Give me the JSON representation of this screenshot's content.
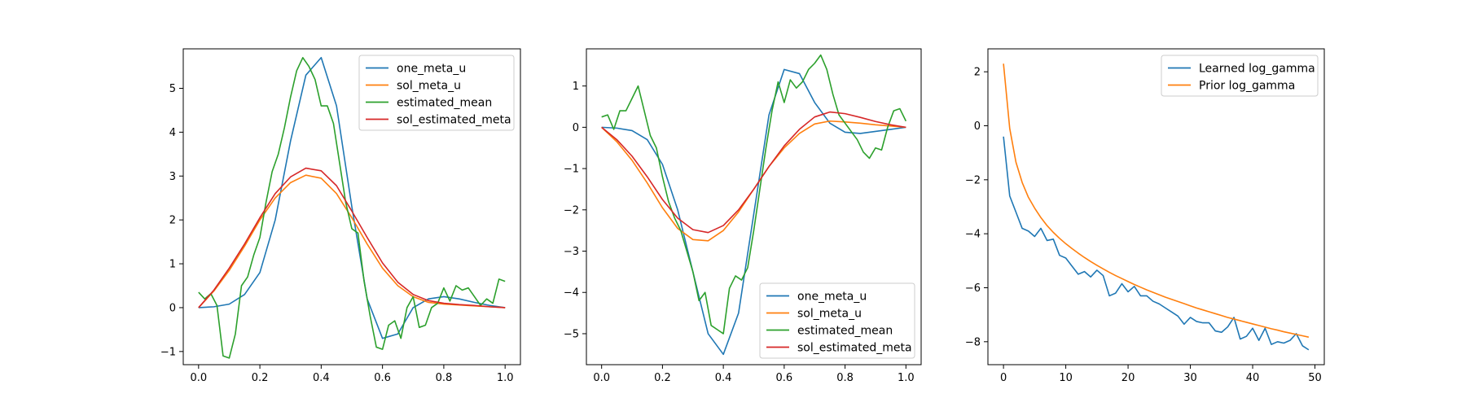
{
  "chart_data": [
    {
      "type": "line",
      "xlim": [
        -0.05,
        1.05
      ],
      "ylim": [
        -1.3,
        5.9
      ],
      "xticks": [
        0.0,
        0.2,
        0.4,
        0.6,
        0.8,
        1.0
      ],
      "xtick_labels": [
        "0.0",
        "0.2",
        "0.4",
        "0.6",
        "0.8",
        "1.0"
      ],
      "yticks": [
        -1,
        0,
        1,
        2,
        3,
        4,
        5
      ],
      "ytick_labels": [
        "−1",
        "0",
        "1",
        "2",
        "3",
        "4",
        "5"
      ],
      "legend_position": "top-right",
      "series": [
        {
          "name": "one_meta_u",
          "color": "#1f77b4",
          "x": [
            0.0,
            0.05,
            0.1,
            0.15,
            0.2,
            0.25,
            0.3,
            0.35,
            0.4,
            0.45,
            0.5,
            0.55,
            0.6,
            0.65,
            0.7,
            0.75,
            0.8,
            0.85,
            0.9,
            0.95,
            1.0
          ],
          "y": [
            0.0,
            0.02,
            0.08,
            0.3,
            0.8,
            2.0,
            3.8,
            5.3,
            5.7,
            4.6,
            2.3,
            0.2,
            -0.7,
            -0.6,
            0.0,
            0.2,
            0.25,
            0.2,
            0.12,
            0.05,
            0.0
          ]
        },
        {
          "name": "sol_meta_u",
          "color": "#ff7f0e",
          "x": [
            0.0,
            0.05,
            0.1,
            0.15,
            0.2,
            0.25,
            0.3,
            0.35,
            0.4,
            0.45,
            0.5,
            0.55,
            0.6,
            0.65,
            0.7,
            0.75,
            0.8,
            0.85,
            0.9,
            0.95,
            1.0
          ],
          "y": [
            0.0,
            0.38,
            0.85,
            1.4,
            2.0,
            2.5,
            2.85,
            3.02,
            2.95,
            2.6,
            2.05,
            1.45,
            0.9,
            0.5,
            0.25,
            0.12,
            0.08,
            0.06,
            0.04,
            0.02,
            0.0
          ]
        },
        {
          "name": "estimated_mean",
          "color": "#2ca02c",
          "x": [
            0.0,
            0.02,
            0.04,
            0.06,
            0.08,
            0.1,
            0.12,
            0.14,
            0.16,
            0.18,
            0.2,
            0.22,
            0.24,
            0.26,
            0.28,
            0.3,
            0.32,
            0.34,
            0.36,
            0.38,
            0.4,
            0.42,
            0.44,
            0.46,
            0.48,
            0.5,
            0.52,
            0.54,
            0.56,
            0.58,
            0.6,
            0.62,
            0.64,
            0.66,
            0.68,
            0.7,
            0.72,
            0.74,
            0.76,
            0.78,
            0.8,
            0.82,
            0.84,
            0.86,
            0.88,
            0.9,
            0.92,
            0.94,
            0.96,
            0.98,
            1.0
          ],
          "y": [
            0.35,
            0.2,
            0.32,
            0.05,
            -1.1,
            -1.15,
            -0.6,
            0.5,
            0.7,
            1.2,
            1.6,
            2.4,
            3.1,
            3.5,
            4.1,
            4.8,
            5.4,
            5.7,
            5.5,
            5.2,
            4.6,
            4.6,
            4.2,
            3.3,
            2.4,
            1.8,
            1.7,
            0.6,
            -0.2,
            -0.9,
            -0.95,
            -0.4,
            -0.3,
            -0.7,
            0.0,
            0.25,
            -0.45,
            -0.4,
            0.0,
            0.1,
            0.45,
            0.15,
            0.5,
            0.4,
            0.45,
            0.25,
            0.05,
            0.2,
            0.1,
            0.65,
            0.6
          ]
        },
        {
          "name": "sol_estimated_meta",
          "color": "#d62728",
          "x": [
            0.0,
            0.05,
            0.1,
            0.15,
            0.2,
            0.25,
            0.3,
            0.35,
            0.4,
            0.45,
            0.5,
            0.55,
            0.6,
            0.65,
            0.7,
            0.75,
            0.8,
            0.85,
            0.9,
            0.95,
            1.0
          ],
          "y": [
            0.0,
            0.4,
            0.9,
            1.45,
            2.05,
            2.6,
            2.98,
            3.18,
            3.12,
            2.78,
            2.2,
            1.6,
            1.02,
            0.58,
            0.3,
            0.16,
            0.1,
            0.07,
            0.05,
            0.02,
            0.0
          ]
        }
      ]
    },
    {
      "type": "line",
      "xlim": [
        -0.05,
        1.05
      ],
      "ylim": [
        -5.75,
        1.9
      ],
      "xticks": [
        0.0,
        0.2,
        0.4,
        0.6,
        0.8,
        1.0
      ],
      "xtick_labels": [
        "0.0",
        "0.2",
        "0.4",
        "0.6",
        "0.8",
        "1.0"
      ],
      "yticks": [
        -5,
        -4,
        -3,
        -2,
        -1,
        0,
        1
      ],
      "ytick_labels": [
        "−5",
        "−4",
        "−3",
        "−2",
        "−1",
        "0",
        "1"
      ],
      "legend_position": "bottom-right",
      "series": [
        {
          "name": "one_meta_u",
          "color": "#1f77b4",
          "x": [
            0.0,
            0.05,
            0.1,
            0.15,
            0.2,
            0.25,
            0.3,
            0.35,
            0.4,
            0.45,
            0.5,
            0.55,
            0.6,
            0.65,
            0.7,
            0.75,
            0.8,
            0.85,
            0.9,
            0.95,
            1.0
          ],
          "y": [
            0.0,
            -0.02,
            -0.08,
            -0.3,
            -0.9,
            -2.0,
            -3.5,
            -5.0,
            -5.5,
            -4.5,
            -2.1,
            0.3,
            1.4,
            1.3,
            0.6,
            0.1,
            -0.12,
            -0.15,
            -0.1,
            -0.05,
            0.0
          ]
        },
        {
          "name": "sol_meta_u",
          "color": "#ff7f0e",
          "x": [
            0.0,
            0.05,
            0.1,
            0.15,
            0.2,
            0.25,
            0.3,
            0.35,
            0.4,
            0.45,
            0.5,
            0.55,
            0.6,
            0.65,
            0.7,
            0.75,
            0.8,
            0.85,
            0.9,
            0.95,
            1.0
          ],
          "y": [
            0.0,
            -0.35,
            -0.8,
            -1.35,
            -1.95,
            -2.45,
            -2.72,
            -2.75,
            -2.5,
            -2.05,
            -1.5,
            -0.95,
            -0.5,
            -0.15,
            0.08,
            0.15,
            0.13,
            0.1,
            0.06,
            0.03,
            0.0
          ]
        },
        {
          "name": "estimated_mean",
          "color": "#2ca02c",
          "x": [
            0.0,
            0.02,
            0.04,
            0.06,
            0.08,
            0.1,
            0.12,
            0.14,
            0.16,
            0.18,
            0.2,
            0.22,
            0.24,
            0.26,
            0.28,
            0.3,
            0.32,
            0.34,
            0.36,
            0.38,
            0.4,
            0.42,
            0.44,
            0.46,
            0.48,
            0.5,
            0.52,
            0.54,
            0.56,
            0.58,
            0.6,
            0.62,
            0.64,
            0.66,
            0.68,
            0.7,
            0.72,
            0.74,
            0.76,
            0.78,
            0.8,
            0.82,
            0.84,
            0.86,
            0.88,
            0.9,
            0.92,
            0.94,
            0.96,
            0.98,
            1.0
          ],
          "y": [
            0.25,
            0.3,
            -0.05,
            0.4,
            0.4,
            0.7,
            1.0,
            0.4,
            -0.2,
            -0.5,
            -1.2,
            -1.8,
            -2.2,
            -2.5,
            -3.0,
            -3.5,
            -4.2,
            -4.0,
            -4.8,
            -4.9,
            -5.0,
            -3.9,
            -3.6,
            -3.7,
            -3.4,
            -2.5,
            -1.5,
            -0.5,
            0.4,
            1.1,
            0.6,
            1.15,
            0.95,
            1.1,
            1.4,
            1.55,
            1.75,
            1.4,
            0.8,
            0.3,
            0.1,
            -0.1,
            -0.3,
            -0.6,
            -0.75,
            -0.5,
            -0.55,
            0.0,
            0.4,
            0.45,
            0.15
          ]
        },
        {
          "name": "sol_estimated_meta",
          "color": "#d62728",
          "x": [
            0.0,
            0.05,
            0.1,
            0.15,
            0.2,
            0.25,
            0.3,
            0.35,
            0.4,
            0.45,
            0.5,
            0.55,
            0.6,
            0.65,
            0.7,
            0.75,
            0.8,
            0.85,
            0.9,
            0.95,
            1.0
          ],
          "y": [
            0.0,
            -0.3,
            -0.7,
            -1.2,
            -1.75,
            -2.2,
            -2.48,
            -2.55,
            -2.38,
            -2.0,
            -1.5,
            -0.95,
            -0.45,
            -0.05,
            0.25,
            0.37,
            0.33,
            0.24,
            0.14,
            0.06,
            0.0
          ]
        }
      ]
    },
    {
      "type": "line",
      "xlim": [
        -2.5,
        51.5
      ],
      "ylim": [
        -8.85,
        2.85
      ],
      "xticks": [
        0,
        10,
        20,
        30,
        40,
        50
      ],
      "xtick_labels": [
        "0",
        "10",
        "20",
        "30",
        "40",
        "50"
      ],
      "yticks": [
        -8,
        -6,
        -4,
        -2,
        0,
        2
      ],
      "ytick_labels": [
        "−8",
        "−6",
        "−4",
        "−2",
        "0",
        "2"
      ],
      "legend_position": "top-right",
      "series": [
        {
          "name": "Learned log_gamma",
          "color": "#1f77b4",
          "x": [
            0,
            1,
            2,
            3,
            4,
            5,
            6,
            7,
            8,
            9,
            10,
            11,
            12,
            13,
            14,
            15,
            16,
            17,
            18,
            19,
            20,
            21,
            22,
            23,
            24,
            25,
            26,
            27,
            28,
            29,
            30,
            31,
            32,
            33,
            34,
            35,
            36,
            37,
            38,
            39,
            40,
            41,
            42,
            43,
            44,
            45,
            46,
            47,
            48,
            49
          ],
          "y": [
            -0.4,
            -2.6,
            -3.2,
            -3.8,
            -3.9,
            -4.1,
            -3.8,
            -4.25,
            -4.2,
            -4.8,
            -4.9,
            -5.2,
            -5.5,
            -5.4,
            -5.6,
            -5.35,
            -5.55,
            -6.3,
            -6.2,
            -5.85,
            -6.15,
            -5.95,
            -6.3,
            -6.3,
            -6.5,
            -6.6,
            -6.75,
            -6.9,
            -7.05,
            -7.35,
            -7.1,
            -7.25,
            -7.3,
            -7.3,
            -7.6,
            -7.65,
            -7.45,
            -7.1,
            -7.9,
            -7.8,
            -7.5,
            -7.95,
            -7.5,
            -8.1,
            -8.0,
            -8.05,
            -7.95,
            -7.7,
            -8.15,
            -8.3
          ]
        },
        {
          "name": "Prior log_gamma",
          "color": "#ff7f0e",
          "x": [
            0,
            1,
            2,
            3,
            4,
            5,
            6,
            7,
            8,
            9,
            10,
            11,
            12,
            13,
            14,
            15,
            16,
            17,
            18,
            19,
            20,
            21,
            22,
            23,
            24,
            25,
            26,
            27,
            28,
            29,
            30,
            31,
            32,
            33,
            34,
            35,
            36,
            37,
            38,
            39,
            40,
            41,
            42,
            43,
            44,
            45,
            46,
            47,
            48,
            49
          ],
          "y": [
            2.3,
            -0.1,
            -1.35,
            -2.1,
            -2.65,
            -3.05,
            -3.4,
            -3.7,
            -3.95,
            -4.17,
            -4.37,
            -4.55,
            -4.72,
            -4.88,
            -5.03,
            -5.17,
            -5.3,
            -5.43,
            -5.55,
            -5.66,
            -5.77,
            -5.88,
            -5.98,
            -6.08,
            -6.17,
            -6.26,
            -6.35,
            -6.43,
            -6.51,
            -6.59,
            -6.67,
            -6.75,
            -6.82,
            -6.89,
            -6.96,
            -7.03,
            -7.1,
            -7.16,
            -7.22,
            -7.28,
            -7.34,
            -7.4,
            -7.46,
            -7.52,
            -7.57,
            -7.63,
            -7.68,
            -7.73,
            -7.78,
            -7.83
          ]
        }
      ]
    }
  ]
}
